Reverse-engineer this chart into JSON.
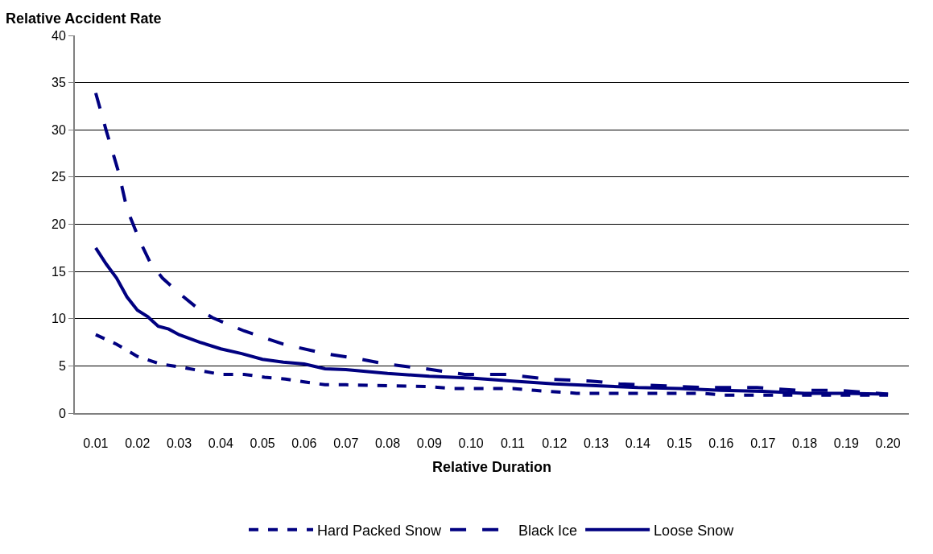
{
  "chart_data": {
    "type": "line",
    "xlabel": "Relative Duration",
    "ylabel": "Relative Accident Rate",
    "xlim": [
      0.005,
      0.205
    ],
    "ylim": [
      0,
      40
    ],
    "yticks": [
      0,
      5,
      10,
      15,
      20,
      25,
      30,
      35,
      40
    ],
    "xticks": [
      {
        "value": 0.01,
        "label": "0.01"
      },
      {
        "value": 0.02,
        "label": "0.02"
      },
      {
        "value": 0.03,
        "label": "0.03"
      },
      {
        "value": 0.04,
        "label": "0.04"
      },
      {
        "value": 0.05,
        "label": "0.05"
      },
      {
        "value": 0.06,
        "label": "0.06"
      },
      {
        "value": 0.07,
        "label": "0.07"
      },
      {
        "value": 0.08,
        "label": "0.08"
      },
      {
        "value": 0.09,
        "label": "0.09"
      },
      {
        "value": 0.1,
        "label": "0.10"
      },
      {
        "value": 0.11,
        "label": "0.11"
      },
      {
        "value": 0.12,
        "label": "0.12"
      },
      {
        "value": 0.13,
        "label": "0.13"
      },
      {
        "value": 0.14,
        "label": "0.14"
      },
      {
        "value": 0.15,
        "label": "0.15"
      },
      {
        "value": 0.16,
        "label": "0.16"
      },
      {
        "value": 0.17,
        "label": "0.17"
      },
      {
        "value": 0.18,
        "label": "0.18"
      },
      {
        "value": 0.19,
        "label": "0.19"
      },
      {
        "value": 0.2,
        "label": "0.20"
      }
    ],
    "grid": "y",
    "legend": "bottom",
    "marker": "none",
    "series": [
      {
        "name": "Hard Packed Snow",
        "color": "#000080",
        "line_style": "dotted",
        "x": [
          0.01,
          0.015,
          0.02,
          0.0255,
          0.03,
          0.035,
          0.04,
          0.0456,
          0.0505,
          0.0555,
          0.06,
          0.065,
          0.07,
          0.08,
          0.09,
          0.0955,
          0.11,
          0.1153,
          0.1253,
          0.1554,
          0.1605,
          0.2
        ],
        "values": [
          8.3,
          7.3,
          6.0,
          5.2,
          4.9,
          4.5,
          4.1,
          4.1,
          3.8,
          3.6,
          3.3,
          3.0,
          3.0,
          2.9,
          2.8,
          2.6,
          2.6,
          2.4,
          2.1,
          2.1,
          1.9,
          1.9
        ]
      },
      {
        "name": "Black Ice",
        "color": "#000080",
        "line_style": "dashed",
        "x": [
          0.01,
          0.0126,
          0.0155,
          0.0175,
          0.0207,
          0.023,
          0.026,
          0.03,
          0.035,
          0.038,
          0.0456,
          0.055,
          0.065,
          0.0725,
          0.0795,
          0.089,
          0.0985,
          0.1087,
          0.118,
          0.1286,
          0.1356,
          0.1454,
          0.156,
          0.1686,
          0.1785,
          0.1887,
          0.2
        ],
        "values": [
          33.9,
          29.8,
          25.5,
          21.6,
          18.1,
          16.0,
          14.3,
          12.7,
          10.9,
          10.1,
          8.7,
          7.3,
          6.3,
          5.8,
          5.2,
          4.7,
          4.1,
          4.1,
          3.6,
          3.4,
          3.1,
          2.9,
          2.7,
          2.7,
          2.4,
          2.4,
          2.0
        ]
      },
      {
        "name": "Loose Snow",
        "color": "#000080",
        "line_style": "solid",
        "x": [
          0.01,
          0.0125,
          0.015,
          0.0175,
          0.02,
          0.0225,
          0.025,
          0.0275,
          0.03,
          0.035,
          0.04,
          0.045,
          0.05,
          0.055,
          0.06,
          0.065,
          0.07,
          0.08,
          0.09,
          0.1,
          0.11,
          0.12,
          0.13,
          0.14,
          0.15,
          0.16,
          0.17,
          0.18,
          0.19,
          0.2
        ],
        "values": [
          17.5,
          15.8,
          14.3,
          12.3,
          10.9,
          10.2,
          9.2,
          8.9,
          8.3,
          7.5,
          6.8,
          6.3,
          5.7,
          5.4,
          5.2,
          4.7,
          4.6,
          4.2,
          3.9,
          3.7,
          3.4,
          3.1,
          2.9,
          2.7,
          2.6,
          2.4,
          2.3,
          2.1,
          2.1,
          2.0
        ]
      }
    ]
  }
}
